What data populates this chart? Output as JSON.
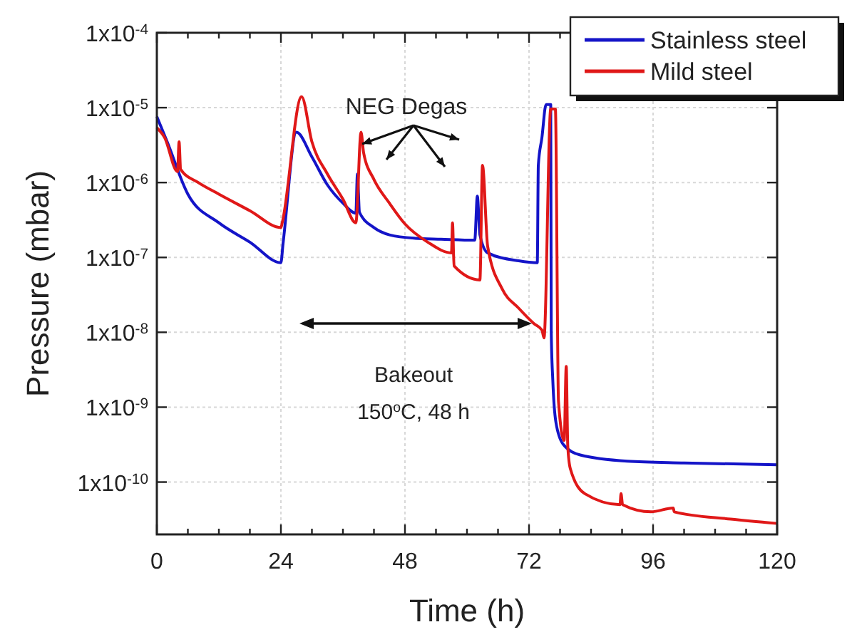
{
  "chart_data": {
    "type": "line",
    "xlabel": "Time (h)",
    "ylabel": "Pressure (mbar)",
    "xlim": [
      0,
      120
    ],
    "xticks": [
      0,
      {
        "value": 6,
        "label": null
      },
      {
        "value": 12,
        "label": null
      },
      {
        "value": 18,
        "label": null
      },
      24,
      {
        "value": 30,
        "label": null
      },
      {
        "value": 36,
        "label": null
      },
      {
        "value": 42,
        "label": null
      },
      48,
      {
        "value": 54,
        "label": null
      },
      {
        "value": 60,
        "label": null
      },
      {
        "value": 66,
        "label": null
      },
      72,
      {
        "value": 78,
        "label": null
      },
      {
        "value": 84,
        "label": null
      },
      {
        "value": 90,
        "label": null
      },
      96,
      {
        "value": 102,
        "label": null
      },
      {
        "value": 108,
        "label": null
      },
      {
        "value": 114,
        "label": null
      },
      120
    ],
    "ylim": [
      2e-11,
      0.0001
    ],
    "yticks": [
      {
        "value": 1e-10,
        "label": "1x10$^{-10}$"
      },
      {
        "value": 1e-09,
        "label": "1x10$^{-9}$"
      },
      {
        "value": 1e-08,
        "label": "1x10$^{-8}$"
      },
      {
        "value": 1e-07,
        "label": "1x10$^{-7}$"
      },
      {
        "value": 1e-06,
        "label": "1x10$^{-6}$"
      },
      {
        "value": 1e-05,
        "label": "1x10$^{-5}$"
      },
      {
        "value": 0.0001,
        "label": "1x10$^{-4}$"
      }
    ],
    "log": "y",
    "grid": true,
    "legend": "top right",
    "line_style": "solid",
    "annotations": [
      "NEG Degas",
      "Bakeout",
      "150$^{o}$C, 48 h"
    ],
    "series": [
      {
        "name": "Stainless steel",
        "color": "#1414c8",
        "x": [
          0,
          2,
          6,
          12,
          18,
          24,
          24.4,
          24.6,
          27,
          30,
          33,
          36,
          38.5,
          38.8,
          39.2,
          42,
          45,
          50,
          55,
          61.5,
          62,
          62.5,
          64,
          70,
          73.6,
          73.8,
          74.5,
          75.3,
          76.2,
          76.3,
          76.6,
          77.2,
          78.6,
          81.9,
          91,
          102,
          120
        ],
        "values": [
          7.6e-06,
          3.5e-06,
          7e-07,
          2.9e-07,
          1.6e-07,
          8.5e-08,
          1.5e-07,
          2e-07,
          4.7e-06,
          2.2e-06,
          9.3e-07,
          5.3e-07,
          3.9e-07,
          1.3e-06,
          4e-07,
          2.5e-07,
          2e-07,
          1.8e-07,
          1.75e-07,
          1.7e-07,
          6.6e-07,
          2e-07,
          1.15e-07,
          9e-08,
          8.5e-08,
          1.7e-06,
          4e-06,
          1.1e-05,
          1.1e-05,
          1e-08,
          2.3e-09,
          6.3e-10,
          3.2e-10,
          2.3e-10,
          1.9e-10,
          1.8e-10,
          1.7e-10
        ]
      },
      {
        "name": "Mild steel",
        "color": "#e01818",
        "x": [
          0,
          1.5,
          4,
          4.3,
          4.6,
          8,
          12,
          18,
          24,
          24.3,
          28,
          30,
          33,
          36,
          38.5,
          39.5,
          40,
          42,
          45,
          48,
          52.4,
          57,
          57.2,
          57.5,
          62.5,
          63,
          64,
          66.8,
          70,
          73,
          74.5,
          74.9,
          76.2,
          77.1,
          77.7,
          78.8,
          79.2,
          79.5,
          80,
          82.8,
          89.6,
          89.8,
          90.1,
          95.6,
          99.9,
          100.1,
          111,
          120
        ],
        "values": [
          5.4e-06,
          4e-06,
          1.4e-06,
          3.5e-06,
          1.5e-06,
          1e-06,
          7e-07,
          4.2e-07,
          2.5e-07,
          3e-07,
          1.4e-05,
          3.5e-06,
          1.3e-06,
          6e-07,
          2.9e-07,
          4.7e-06,
          2.5e-06,
          1.1e-06,
          5.3e-07,
          2.8e-07,
          1.6e-07,
          1.15e-07,
          2.9e-07,
          7.7e-08,
          5e-08,
          1.7e-06,
          1.4e-07,
          3.8e-08,
          2.1e-08,
          1.3e-08,
          1.07e-08,
          8.4e-09,
          9.6e-06,
          9.6e-06,
          1.2e-09,
          3.6e-10,
          3.5e-09,
          3e-10,
          1.5e-10,
          7e-11,
          5e-11,
          7e-11,
          5e-11,
          4e-11,
          4.5e-11,
          4e-11,
          3.2e-11,
          2.8e-11
        ]
      }
    ]
  }
}
